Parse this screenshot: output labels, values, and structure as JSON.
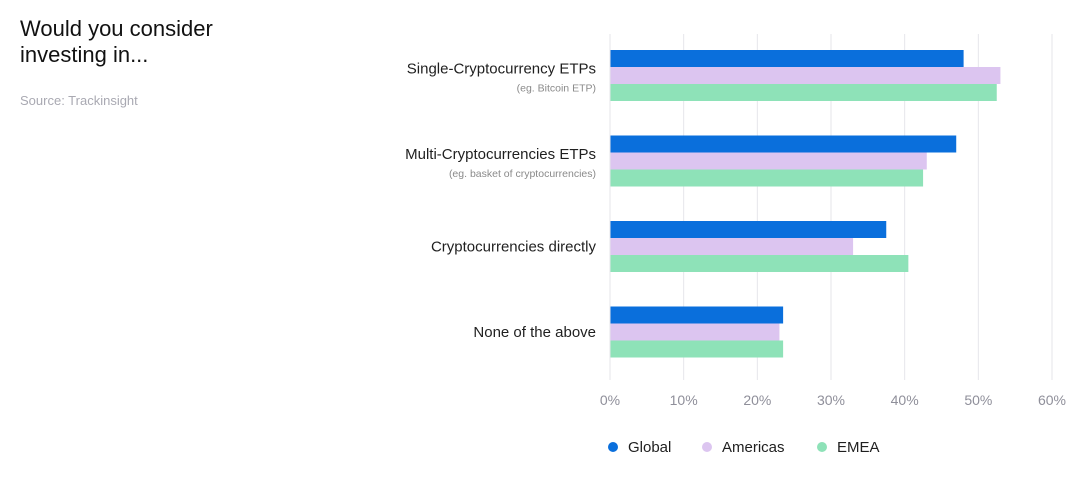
{
  "header": {
    "title": "Would you consider investing in...",
    "source": "Source: Trackinsight"
  },
  "colors": {
    "global": "#0a6fdc",
    "americas": "#dcc5f0",
    "emea": "#8ee2b8",
    "grid": "#e6e6ea"
  },
  "chart_data": {
    "type": "bar",
    "orientation": "horizontal",
    "title": "Would you consider investing in...",
    "categories": [
      "Single-Cryptocurrency ETPs",
      "Multi-Cryptocurrencies ETPs",
      "Cryptocurrencies directly",
      "None of the above"
    ],
    "category_notes": [
      "(eg. Bitcoin ETP)",
      "(eg. basket of cryptocurrencies)",
      "",
      ""
    ],
    "series": [
      {
        "name": "Global",
        "color": "#0a6fdc",
        "values": [
          48,
          47,
          37.5,
          23.5
        ]
      },
      {
        "name": "Americas",
        "color": "#dcc5f0",
        "values": [
          53,
          43,
          33,
          23
        ]
      },
      {
        "name": "EMEA",
        "color": "#8ee2b8",
        "values": [
          52.5,
          42.5,
          40.5,
          23.5
        ]
      }
    ],
    "xlim": [
      0,
      60
    ],
    "xticks": [
      "0%",
      "10%",
      "20%",
      "30%",
      "40%",
      "50%",
      "60%"
    ],
    "legend": "bottom-center",
    "grid": "vertical"
  }
}
